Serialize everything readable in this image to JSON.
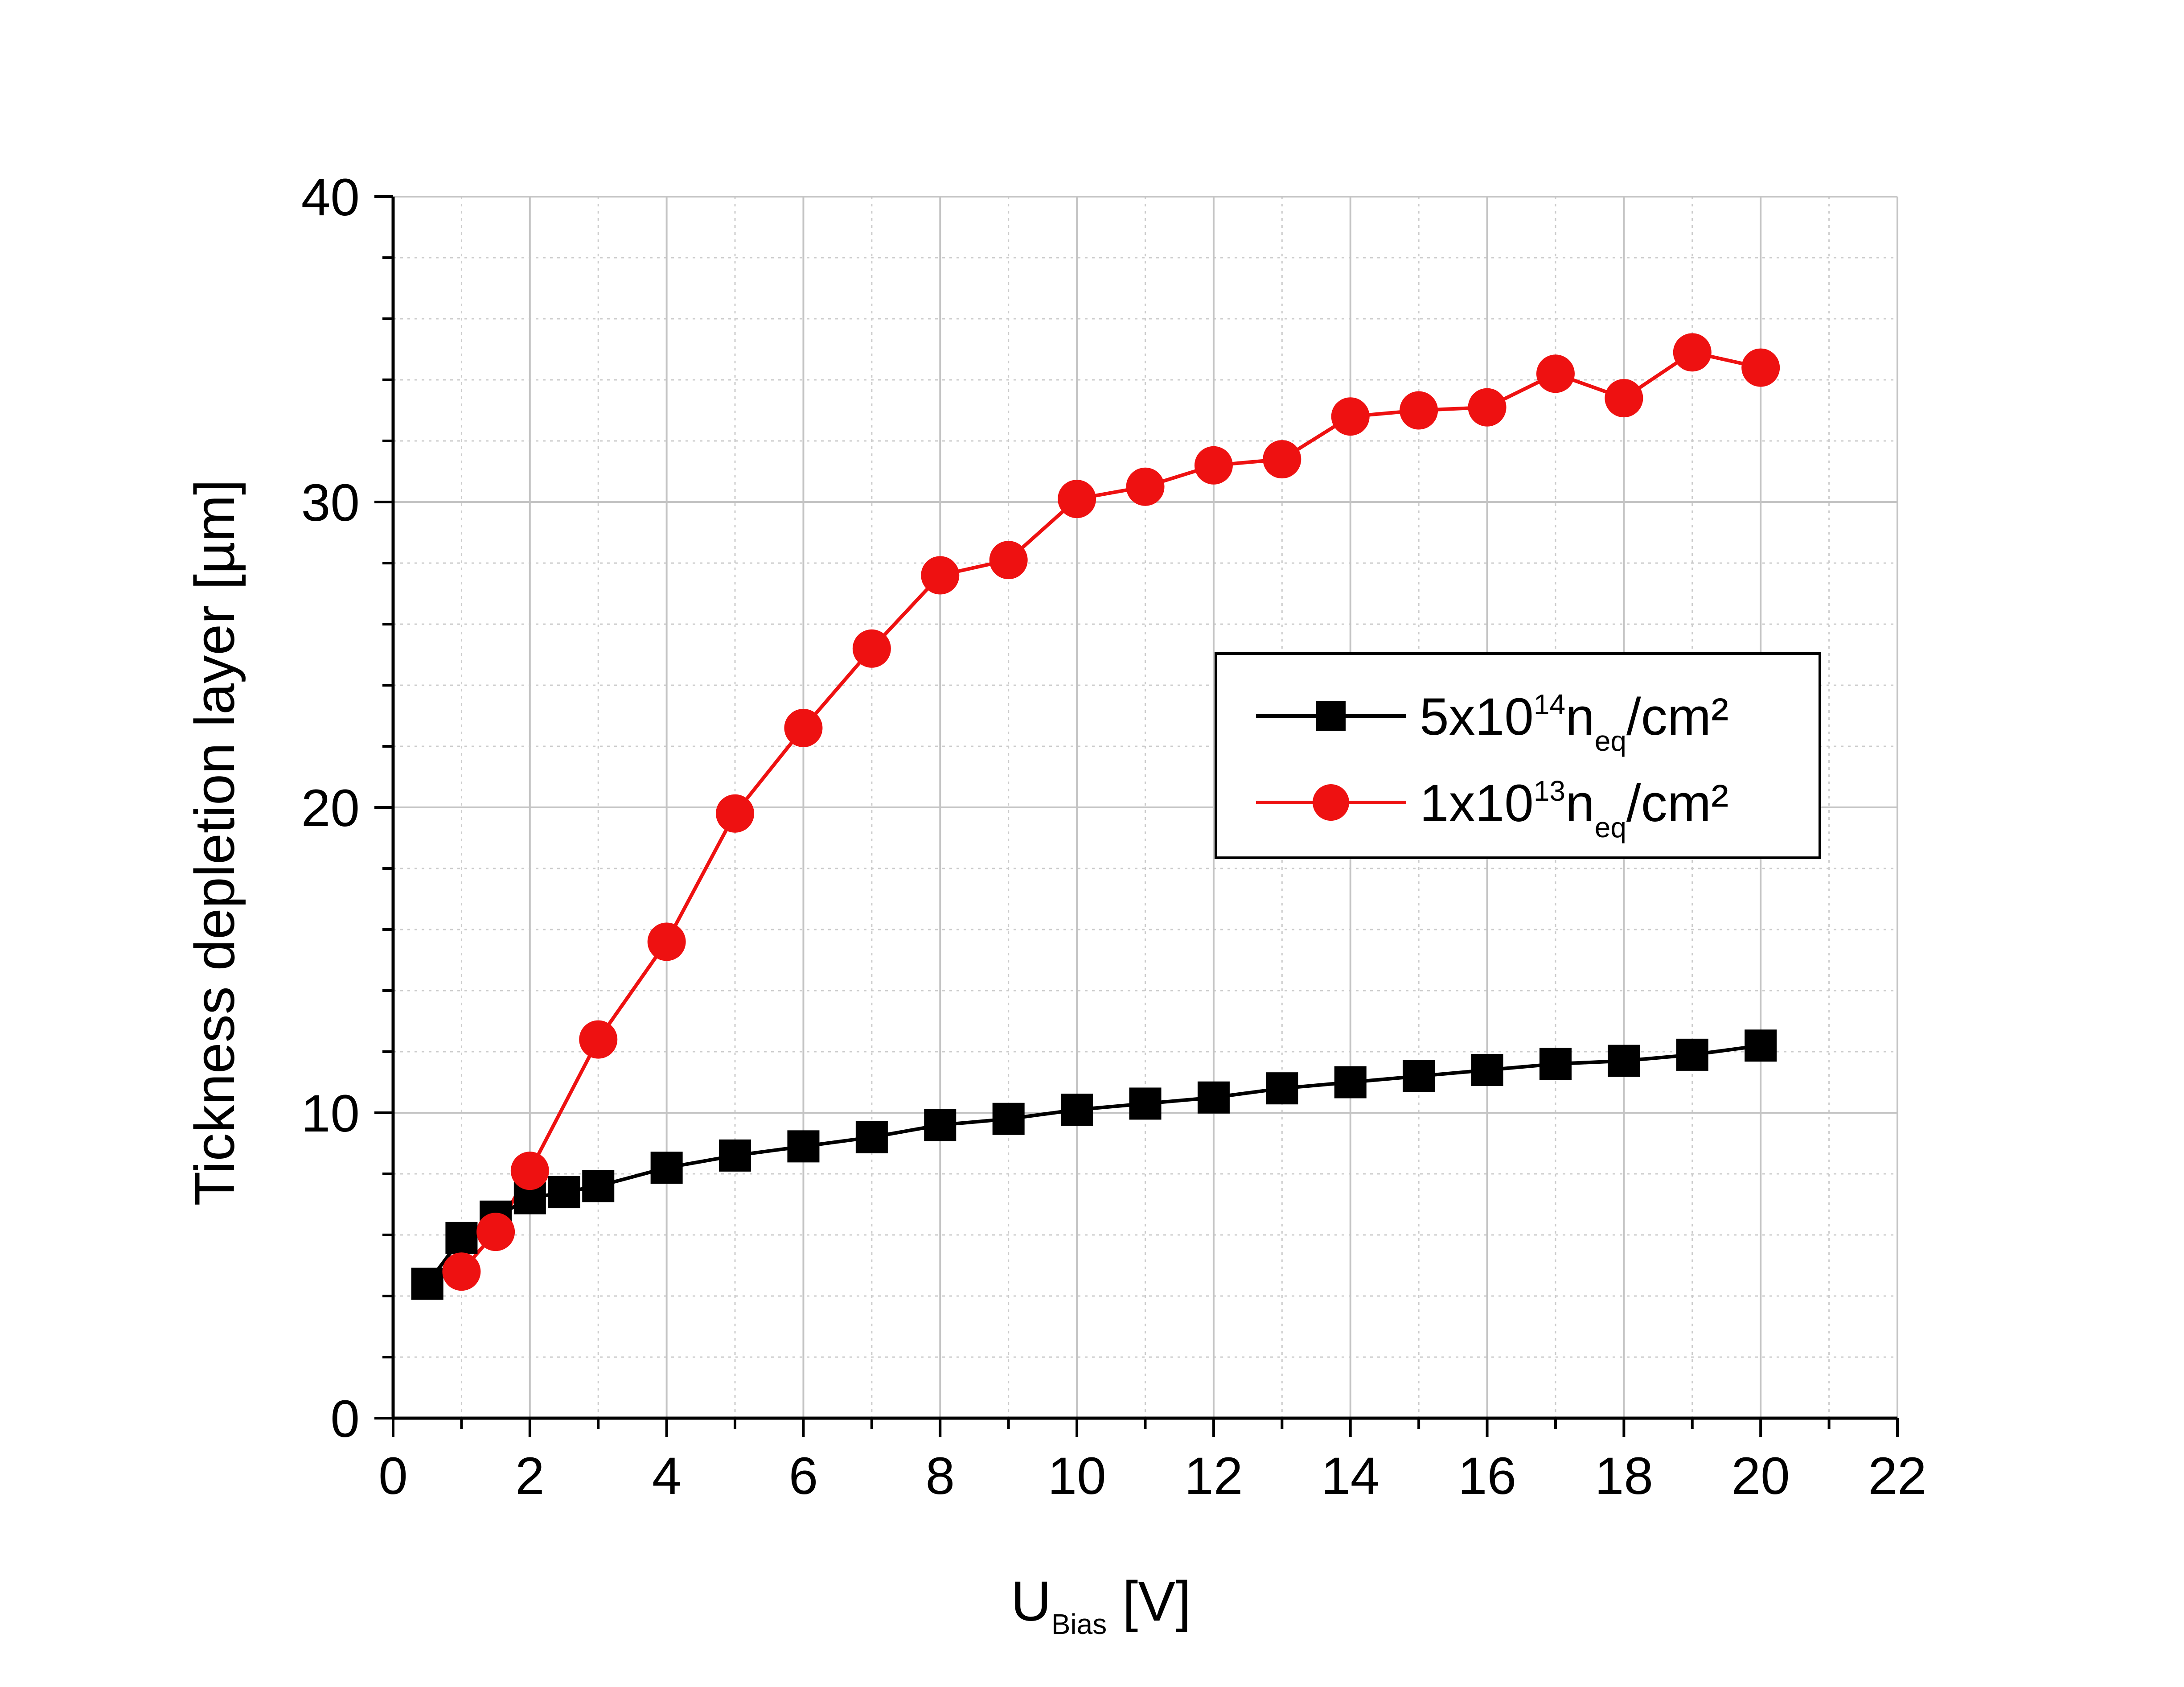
{
  "chart_data": {
    "type": "line",
    "xlabel": {
      "main": "U",
      "subscript": "Bias",
      "suffix": " [V]"
    },
    "ylabel": "Tickness depletion layer [µm]",
    "xlim": [
      0,
      22
    ],
    "ylim": [
      0,
      40
    ],
    "xticks": [
      0,
      2,
      4,
      6,
      8,
      10,
      12,
      14,
      16,
      18,
      20,
      22
    ],
    "yticks": [
      0,
      10,
      20,
      30,
      40
    ],
    "x_minor_step": 1,
    "y_minor_step": 2,
    "grid": true,
    "legend_position": "right-middle",
    "series": [
      {
        "name": "5x10^14 neq/cm²",
        "legend": {
          "base": "5x10",
          "exp": "14",
          "n": "n",
          "sub": "eq",
          "tail": "/cm²"
        },
        "color": "#000000",
        "marker": "square",
        "x": [
          0.5,
          1,
          1.5,
          2,
          2.5,
          3,
          4,
          5,
          6,
          7,
          8,
          9,
          10,
          11,
          12,
          13,
          14,
          15,
          16,
          17,
          18,
          19,
          20
        ],
        "y": [
          4.4,
          5.9,
          6.6,
          7.2,
          7.4,
          7.6,
          8.2,
          8.6,
          8.9,
          9.2,
          9.6,
          9.8,
          10.1,
          10.3,
          10.5,
          10.8,
          11.0,
          11.2,
          11.4,
          11.6,
          11.7,
          11.9,
          12.2
        ]
      },
      {
        "name": "1x10^13 neq/cm²",
        "legend": {
          "base": "1x10",
          "exp": "13",
          "n": "n",
          "sub": "eq",
          "tail": "/cm²"
        },
        "color": "#ee1111",
        "marker": "circle",
        "x": [
          1,
          1.5,
          2,
          3,
          4,
          5,
          6,
          7,
          8,
          9,
          10,
          11,
          12,
          13,
          14,
          15,
          16,
          17,
          18,
          19,
          20
        ],
        "y": [
          4.8,
          6.1,
          8.1,
          12.4,
          15.6,
          19.8,
          22.6,
          25.2,
          27.6,
          28.1,
          30.1,
          30.5,
          31.2,
          31.4,
          32.8,
          33.0,
          33.1,
          34.2,
          33.4,
          34.9,
          34.4
        ]
      }
    ]
  }
}
